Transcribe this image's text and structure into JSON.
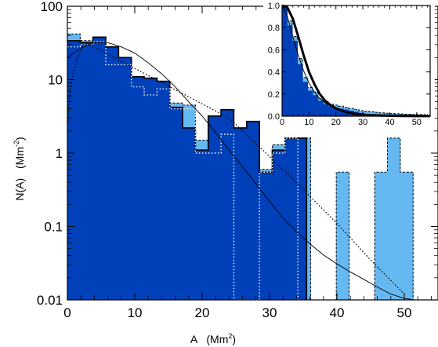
{
  "colors": {
    "dark_blue": "#0040b8",
    "light_blue": "#66b8f0",
    "axis": "#000000",
    "fit_curve": "#000000",
    "dotted_outline": "#ffffff"
  },
  "chart_data": [
    {
      "id": "main",
      "type": "histogram",
      "xlabel": "A",
      "xlabel_unit": "(Mm",
      "xlabel_sup": "2",
      "xlabel_close": ")",
      "ylabel": "N(A)",
      "ylabel_unit": "(Mm",
      "ylabel_sup": "-2",
      "ylabel_close": ")",
      "xlim": [
        0,
        55
      ],
      "ylim": [
        0.01,
        100
      ],
      "yscale": "log",
      "xticks": [
        0,
        10,
        20,
        30,
        40,
        50
      ],
      "xtick_labels": [
        "0",
        "10",
        "20",
        "30",
        "40",
        "50"
      ],
      "yticks": [
        0.01,
        0.1,
        1,
        10,
        100
      ],
      "ytick_labels": [
        "0.01",
        "0.1",
        "1",
        "10",
        "100"
      ],
      "bin_width": 1.9,
      "series": [
        {
          "style": "light blue fill, dashed outline",
          "bin_edges": [
            0,
            1.9,
            3.8,
            5.7,
            7.6,
            9.5,
            11.4,
            13.3,
            15.2,
            17.1,
            19.0,
            20.9,
            22.8,
            24.7,
            26.6,
            28.5,
            30.4,
            32.3,
            34.2,
            36.1,
            38.0,
            39.9,
            41.8,
            43.7,
            45.6,
            47.5,
            49.4,
            51.3
          ],
          "values": [
            42,
            34,
            35,
            26,
            19,
            10,
            9.5,
            8.5,
            4.8,
            4.5,
            1.5,
            2.3,
            3.3,
            1.6,
            2.7,
            0.6,
            1.3,
            1.6,
            1.6,
            0.01,
            0.01,
            0.55,
            0.01,
            0.01,
            0.55,
            1.6,
            0.55
          ]
        },
        {
          "style": "dark blue fill, solid black outline",
          "bin_edges": [
            0,
            1.9,
            3.8,
            5.7,
            7.6,
            9.5,
            11.4,
            13.3,
            15.2,
            17.1,
            19.0,
            20.9,
            22.8,
            24.7,
            26.6,
            28.5,
            30.4,
            32.3,
            34.2,
            35.5
          ],
          "values": [
            34,
            32,
            38,
            28,
            20,
            11,
            10.5,
            9.5,
            4.2,
            2.2,
            1.1,
            3.2,
            3.9,
            2.2,
            2.7,
            0.55,
            1.1,
            1.6,
            1.6
          ]
        },
        {
          "style": "white dotted outline",
          "bin_edges": [
            0,
            1.9,
            3.8,
            5.7,
            7.6,
            9.5,
            11.4,
            13.3,
            15.2,
            17.1,
            19.0,
            20.9,
            22.8,
            24.7,
            26.6,
            28.5,
            30.4,
            32.3,
            34.2
          ],
          "values": [
            28,
            30,
            33,
            16,
            16,
            8,
            6.2,
            7.5,
            4.0,
            4.0,
            1.0,
            1.0,
            1.8,
            0.01,
            0.01,
            0.55,
            1.0,
            1.6
          ]
        }
      ],
      "fit_curves": [
        {
          "style": "thin solid",
          "x": [
            0,
            2,
            4,
            6,
            8,
            10,
            12,
            14,
            16,
            18,
            20,
            22,
            24,
            26,
            28,
            30,
            32,
            34,
            36,
            38,
            40,
            42,
            44,
            46,
            48,
            50,
            51.5
          ],
          "y": [
            20,
            27,
            32,
            32,
            28,
            23,
            17,
            12,
            8,
            5,
            3.2,
            1.9,
            1.1,
            0.65,
            0.38,
            0.22,
            0.13,
            0.085,
            0.058,
            0.041,
            0.031,
            0.024,
            0.019,
            0.015,
            0.012,
            0.0105,
            0.01
          ]
        },
        {
          "style": "dotted",
          "x": [
            0,
            0.3,
            0.6,
            1,
            1.5,
            2,
            2.5,
            3,
            24,
            30,
            35,
            40,
            45,
            50
          ],
          "y": [
            2.5,
            5.5,
            9,
            14,
            20,
            25,
            29,
            31,
            3.0,
            0.9,
            0.32,
            0.11,
            0.035,
            0.012
          ]
        }
      ]
    },
    {
      "id": "inset",
      "type": "histogram",
      "xlim": [
        0,
        55
      ],
      "ylim": [
        0,
        1.0
      ],
      "yscale": "linear",
      "xticks": [
        0,
        10,
        20,
        30,
        40,
        50
      ],
      "xtick_labels": [
        "0",
        "10",
        "20",
        "30",
        "40",
        "50"
      ],
      "yticks": [
        0.0,
        0.2,
        0.4,
        0.6,
        0.8,
        1.0
      ],
      "ytick_labels": [
        "0.0",
        "0.2",
        "0.4",
        "0.6",
        "0.8",
        "1.0"
      ],
      "bin_width": 1.9,
      "series": [
        {
          "style": "light blue fill, dashed outline",
          "bin_edges": [
            0,
            1.9,
            3.8,
            5.7,
            7.6,
            9.5,
            11.4,
            13.3,
            15.2,
            17.1,
            19.0,
            20.9,
            22.8,
            24.7,
            26.6,
            28.5,
            30.4,
            32.3,
            34.2,
            36.1,
            38.0,
            39.9,
            41.8,
            43.7,
            45.6,
            47.5,
            49.4,
            51.3,
            53.2
          ],
          "values": [
            1.0,
            0.86,
            0.72,
            0.52,
            0.35,
            0.26,
            0.22,
            0.16,
            0.13,
            0.11,
            0.1,
            0.09,
            0.08,
            0.07,
            0.06,
            0.05,
            0.045,
            0.04,
            0.035,
            0.03,
            0.027,
            0.024,
            0.022,
            0.02,
            0.018,
            0.016,
            0.015,
            0.014
          ]
        },
        {
          "style": "dark blue fill",
          "bin_edges": [
            0,
            1.9,
            3.8,
            5.7,
            7.6,
            9.5,
            11.4,
            13.3,
            15.2,
            17.1,
            19.0,
            20.9,
            22.8,
            24.7,
            26.6,
            28.5,
            30.4,
            32.3,
            34.2,
            35.5
          ],
          "values": [
            1.0,
            0.82,
            0.68,
            0.47,
            0.31,
            0.23,
            0.19,
            0.14,
            0.11,
            0.09,
            0.08,
            0.07,
            0.06,
            0.05,
            0.04,
            0.03,
            0.02,
            0.015,
            0.01
          ]
        }
      ],
      "fit_curves": [
        {
          "style": "thick solid",
          "x": [
            0,
            2,
            4,
            6,
            8,
            10,
            12,
            14,
            16,
            18,
            20,
            24,
            28,
            32,
            36,
            40,
            45,
            50,
            55
          ],
          "y": [
            1.0,
            0.98,
            0.88,
            0.72,
            0.55,
            0.4,
            0.29,
            0.2,
            0.14,
            0.1,
            0.07,
            0.035,
            0.018,
            0.01,
            0.006,
            0.004,
            0.002,
            0.001,
            0.0006
          ]
        },
        {
          "style": "thin solid",
          "x": [
            0,
            2,
            4,
            6,
            8,
            10,
            12,
            14,
            16,
            18,
            20,
            24,
            28,
            32,
            36,
            40,
            45,
            50,
            55
          ],
          "y": [
            1.0,
            0.9,
            0.72,
            0.55,
            0.41,
            0.3,
            0.22,
            0.16,
            0.12,
            0.09,
            0.07,
            0.04,
            0.025,
            0.015,
            0.01,
            0.006,
            0.004,
            0.002,
            0.001
          ]
        }
      ]
    }
  ]
}
